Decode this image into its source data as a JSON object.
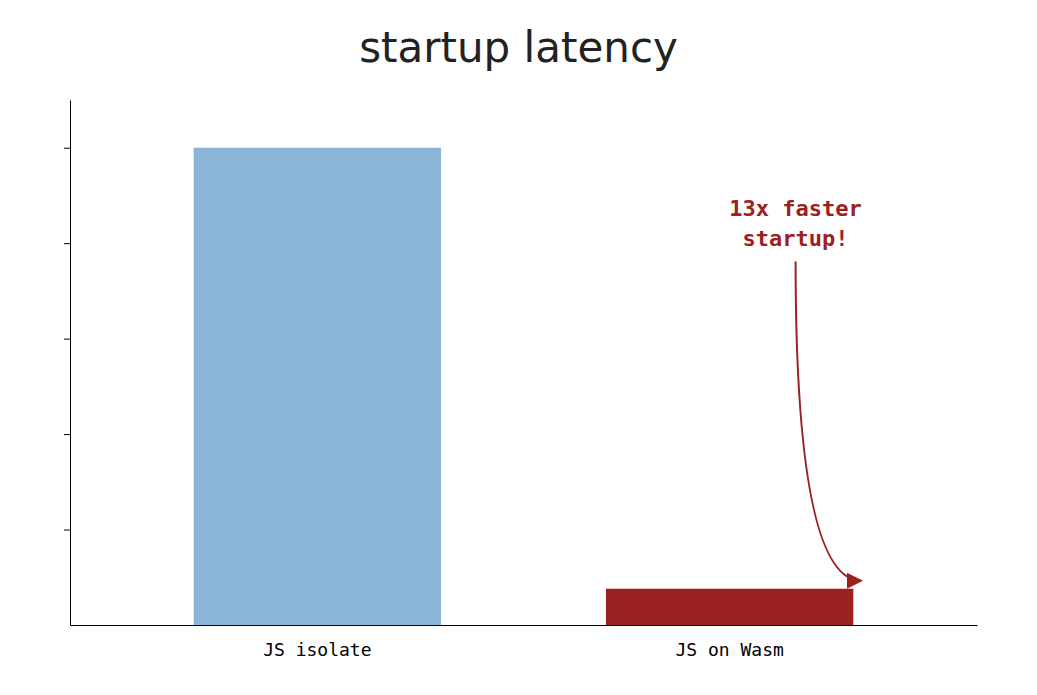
{
  "chart_data": {
    "type": "bar",
    "title": "startup latency",
    "categories": [
      "JS isolate",
      "JS on Wasm"
    ],
    "values": [
      5.0,
      0.38
    ],
    "colors": [
      "#8ab4d8",
      "#9b2020"
    ],
    "ylim": [
      0,
      5.5
    ],
    "yticks": [
      1,
      2,
      3,
      4,
      5
    ],
    "tick_labels": "x",
    "grid": false,
    "annotations": [
      "13x faster",
      "startup!"
    ]
  }
}
